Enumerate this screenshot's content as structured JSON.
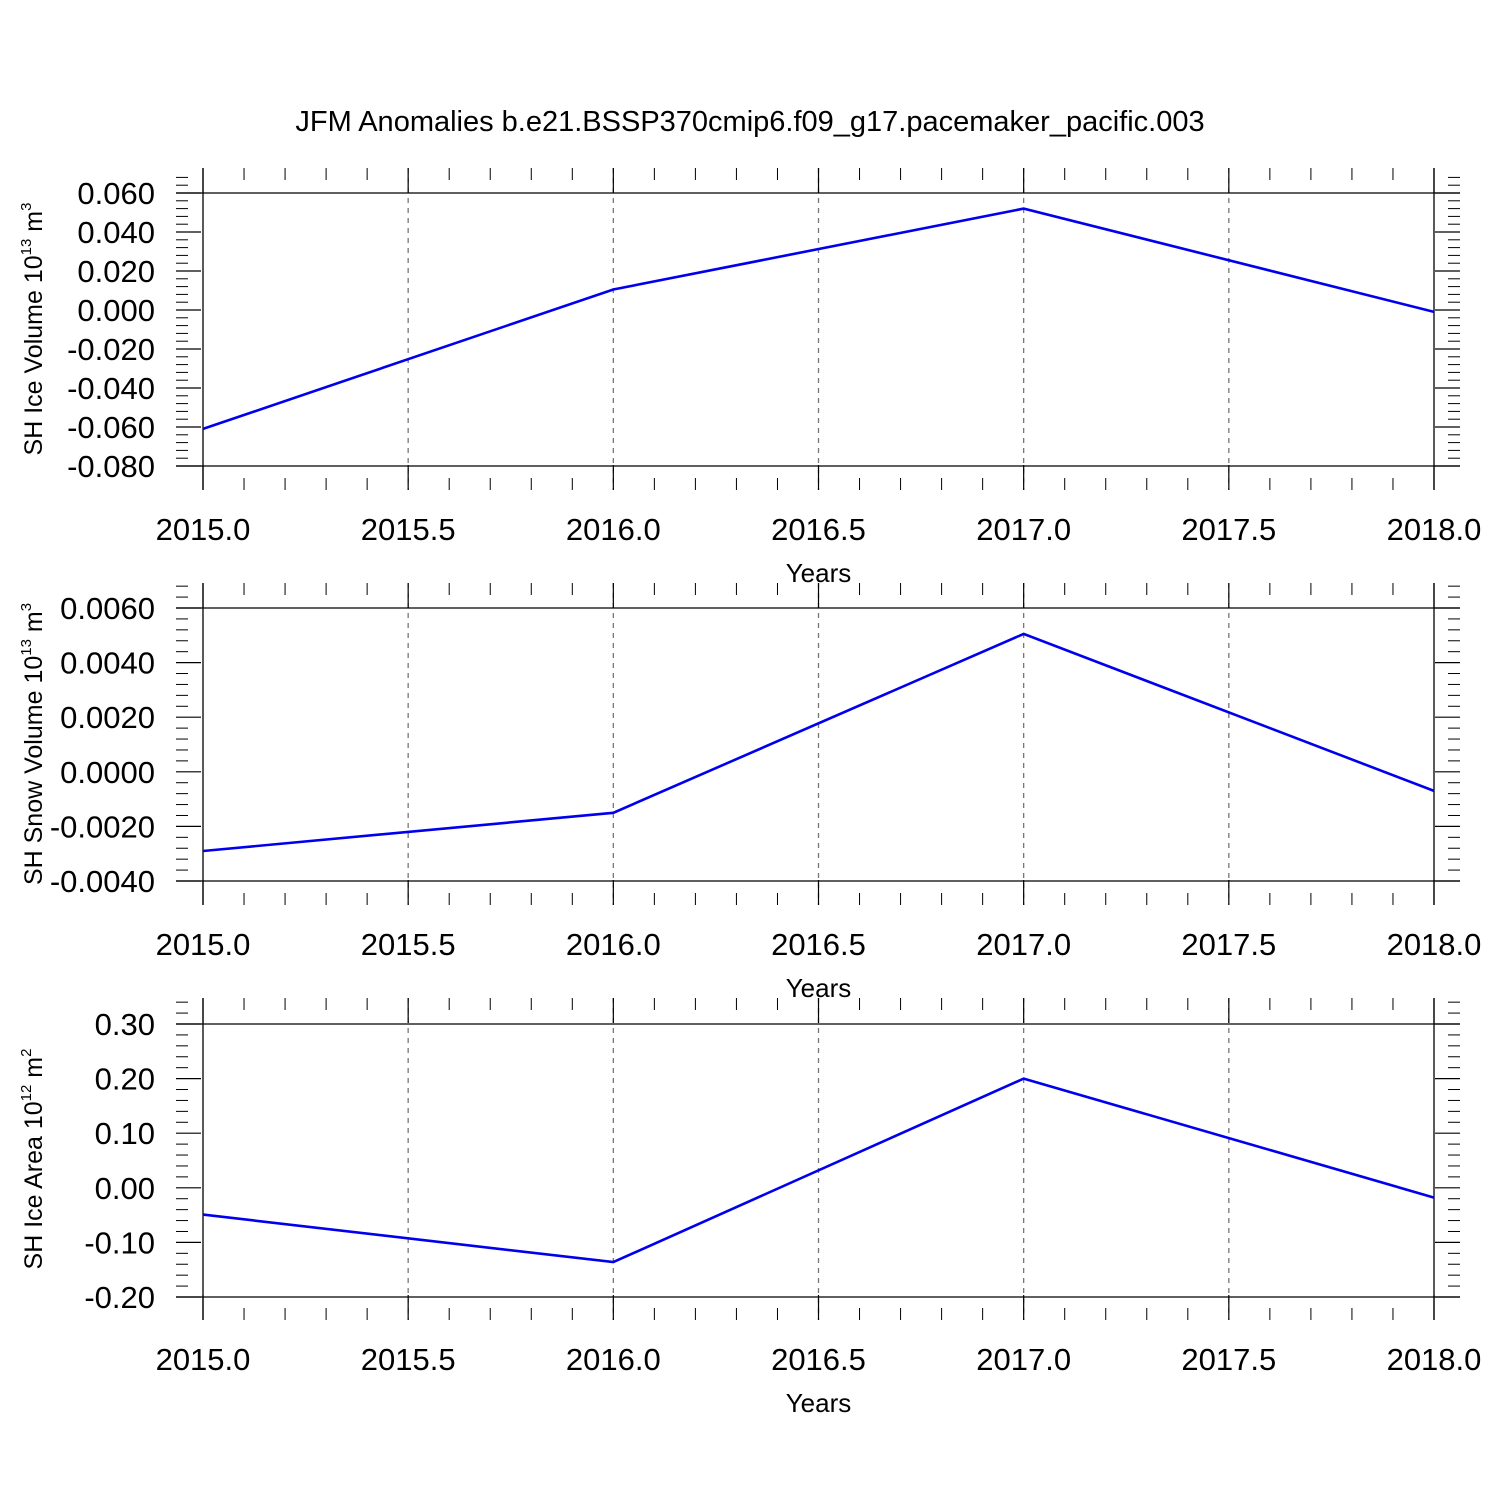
{
  "title": "JFM Anomalies b.e21.BSSP370cmip6.f09_g17.pacemaker_pacific.003",
  "colors": {
    "line": "#0000ee",
    "axis": "#000000",
    "grid": "#777777"
  },
  "chart_data": [
    {
      "type": "line",
      "xlabel": "Years",
      "ylabel": {
        "prefix": "SH Ice Volume 10",
        "exponent": "13",
        "unit": " m",
        "unit_exponent": "3"
      },
      "xlim": [
        2015.0,
        2018.0
      ],
      "ylim": [
        -0.08,
        0.06
      ],
      "x_ticks": [
        "2015.0",
        "2015.5",
        "2016.0",
        "2016.5",
        "2017.0",
        "2017.5",
        "2018.0"
      ],
      "y_ticks": [
        "0.060",
        "0.040",
        "0.020",
        "0.000",
        "-0.020",
        "-0.040",
        "-0.060",
        "-0.080"
      ],
      "grid": "vertical-dashed",
      "series": [
        {
          "x": [
            2015.0,
            2016.0,
            2017.0,
            2018.0
          ],
          "values": [
            -0.061,
            0.0105,
            0.052,
            -0.001
          ]
        }
      ]
    },
    {
      "type": "line",
      "xlabel": "Years",
      "ylabel": {
        "prefix": "SH Snow Volume 10",
        "exponent": "13",
        "unit": " m",
        "unit_exponent": "3"
      },
      "xlim": [
        2015.0,
        2018.0
      ],
      "ylim": [
        -0.004,
        0.006
      ],
      "x_ticks": [
        "2015.0",
        "2015.5",
        "2016.0",
        "2016.5",
        "2017.0",
        "2017.5",
        "2018.0"
      ],
      "y_ticks": [
        "0.0060",
        "0.0040",
        "0.0020",
        "0.0000",
        "-0.0020",
        "-0.0040"
      ],
      "grid": "vertical-dashed",
      "series": [
        {
          "x": [
            2015.0,
            2016.0,
            2017.0,
            2018.0
          ],
          "values": [
            -0.0029,
            -0.0015,
            0.00505,
            -0.0007
          ]
        }
      ]
    },
    {
      "type": "line",
      "xlabel": "Years",
      "ylabel": {
        "prefix": "SH Ice Area 10",
        "exponent": "12",
        "unit": " m",
        "unit_exponent": "2"
      },
      "xlim": [
        2015.0,
        2018.0
      ],
      "ylim": [
        -0.2,
        0.3
      ],
      "x_ticks": [
        "2015.0",
        "2015.5",
        "2016.0",
        "2016.5",
        "2017.0",
        "2017.5",
        "2018.0"
      ],
      "y_ticks": [
        "0.30",
        "0.20",
        "0.10",
        "0.00",
        "-0.10",
        "-0.20"
      ],
      "grid": "vertical-dashed",
      "series": [
        {
          "x": [
            2015.0,
            2016.0,
            2017.0,
            2018.0
          ],
          "values": [
            -0.049,
            -0.136,
            0.2,
            -0.018
          ]
        }
      ]
    }
  ]
}
